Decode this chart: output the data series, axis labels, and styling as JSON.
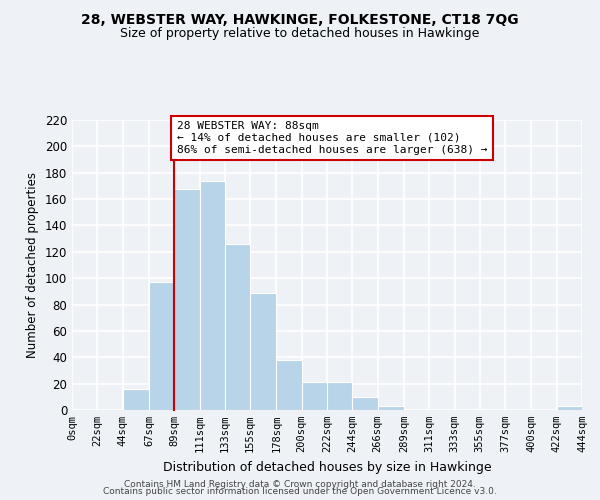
{
  "title1": "28, WEBSTER WAY, HAWKINGE, FOLKESTONE, CT18 7QG",
  "title2": "Size of property relative to detached houses in Hawkinge",
  "xlabel": "Distribution of detached houses by size in Hawkinge",
  "ylabel": "Number of detached properties",
  "bar_edges": [
    0,
    22,
    44,
    67,
    89,
    111,
    133,
    155,
    178,
    200,
    222,
    244,
    266,
    289,
    311,
    333,
    355,
    377,
    400,
    422,
    444
  ],
  "bar_heights": [
    0,
    0,
    16,
    97,
    168,
    174,
    126,
    89,
    38,
    21,
    21,
    10,
    3,
    0,
    0,
    0,
    0,
    0,
    0,
    3
  ],
  "tick_labels": [
    "0sqm",
    "22sqm",
    "44sqm",
    "67sqm",
    "89sqm",
    "111sqm",
    "133sqm",
    "155sqm",
    "178sqm",
    "200sqm",
    "222sqm",
    "244sqm",
    "266sqm",
    "289sqm",
    "311sqm",
    "333sqm",
    "355sqm",
    "377sqm",
    "400sqm",
    "422sqm",
    "444sqm"
  ],
  "bar_color": "#b8d4e8",
  "bar_edge_color": "#b8d4e8",
  "property_line_x": 89,
  "property_line_color": "#cc0000",
  "annotation_line1": "28 WEBSTER WAY: 88sqm",
  "annotation_line2": "← 14% of detached houses are smaller (102)",
  "annotation_line3": "86% of semi-detached houses are larger (638) →",
  "annotation_box_color": "#ffffff",
  "annotation_box_edge": "#cc0000",
  "ylim": [
    0,
    220
  ],
  "yticks": [
    0,
    20,
    40,
    60,
    80,
    100,
    120,
    140,
    160,
    180,
    200,
    220
  ],
  "footer1": "Contains HM Land Registry data © Crown copyright and database right 2024.",
  "footer2": "Contains public sector information licensed under the Open Government Licence v3.0.",
  "bg_color": "#eef2f7",
  "grid_color": "#ffffff",
  "plot_bg": "#eef2f7"
}
